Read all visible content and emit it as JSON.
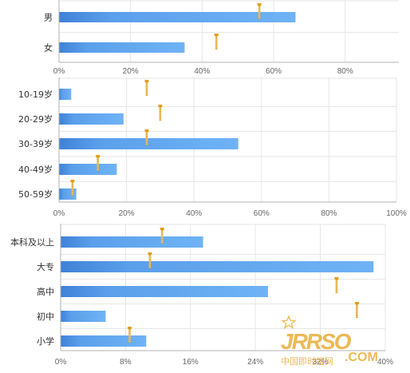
{
  "chart_data": [
    {
      "type": "bar",
      "orientation": "horizontal",
      "categories": [
        "男",
        "女"
      ],
      "values": [
        66,
        35
      ],
      "markers": [
        56,
        44
      ],
      "xlim": [
        0,
        95
      ],
      "ticks": [
        0,
        20,
        40,
        60,
        80
      ],
      "tick_labels": [
        "0%",
        "20%",
        "40%",
        "60%",
        "80%"
      ],
      "grid": true
    },
    {
      "type": "bar",
      "orientation": "horizontal",
      "categories": [
        "10-19岁",
        "20-29岁",
        "30-39岁",
        "40-49岁",
        "50-59岁"
      ],
      "values": [
        3.5,
        19,
        53,
        17,
        5
      ],
      "markers": [
        26,
        30,
        26,
        11.5,
        4
      ],
      "xlim": [
        0,
        100
      ],
      "ticks": [
        0,
        20,
        40,
        60,
        80,
        100
      ],
      "tick_labels": [
        "0%",
        "20%",
        "40%",
        "60%",
        "80%",
        "100%"
      ],
      "grid": true
    },
    {
      "type": "bar",
      "orientation": "horizontal",
      "categories": [
        "本科及以上",
        "大专",
        "高中",
        "初中",
        "小学"
      ],
      "values": [
        17.5,
        38.5,
        25.5,
        5.5,
        10.5
      ],
      "markers": [
        12.5,
        11,
        34,
        36.5,
        8.5
      ],
      "xlim": [
        0,
        40
      ],
      "ticks": [
        0,
        8,
        16,
        24,
        32,
        40
      ],
      "tick_labels": [
        "0%",
        "8%",
        "16%",
        "24%",
        "32%",
        "40%"
      ],
      "grid": true
    }
  ],
  "watermark": {
    "logo": "JRRSO",
    "suffix": ".COM",
    "tagline": "中国即时搜网"
  },
  "colors": {
    "bar_start": "#3f82d8",
    "bar_end": "#6fb3f6",
    "marker": "#e0a020",
    "grid": "#e6e6e6",
    "axis": "#b0b0b0",
    "watermark": "#e8a82c"
  }
}
